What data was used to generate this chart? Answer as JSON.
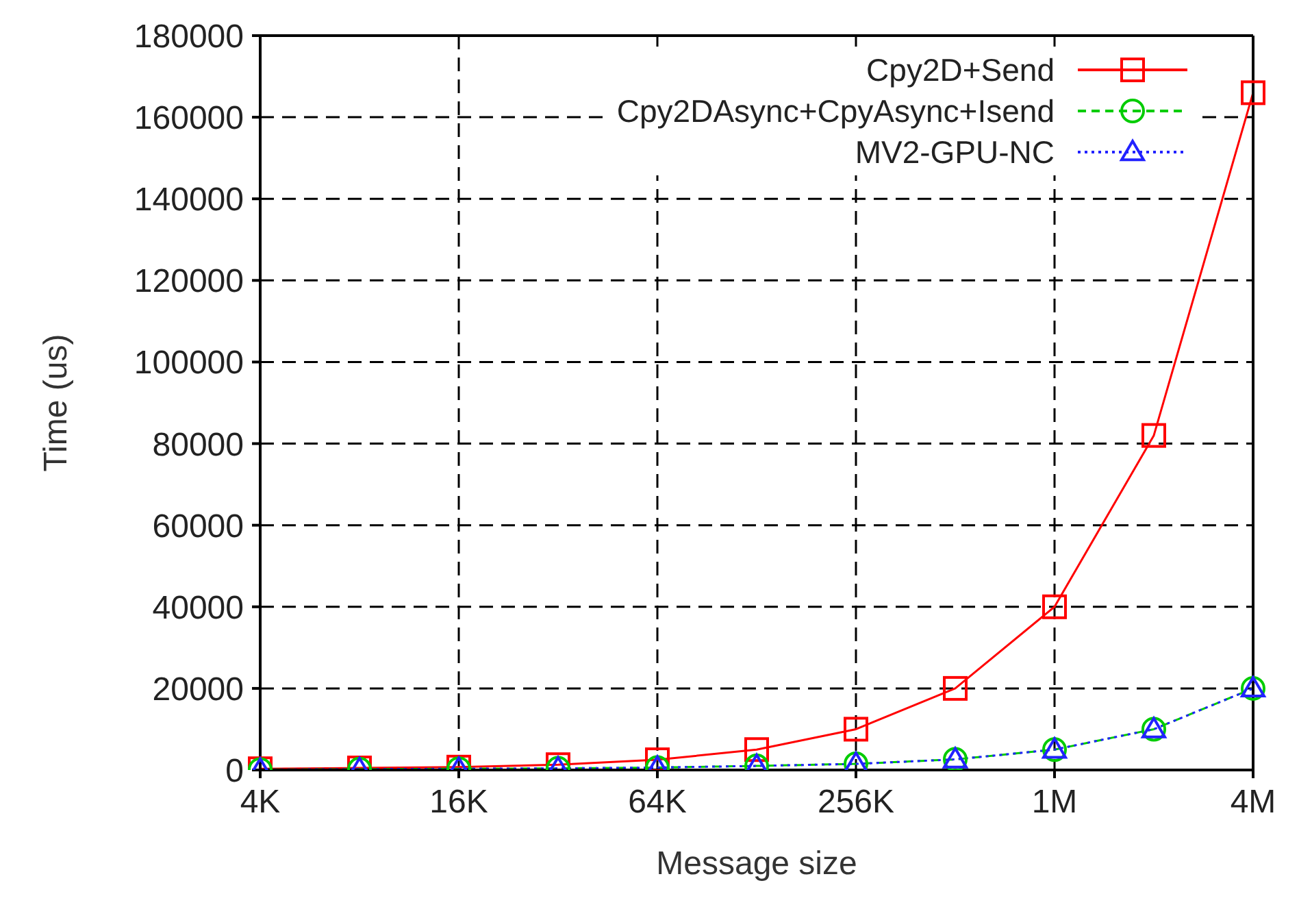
{
  "chart_data": {
    "type": "line",
    "xlabel": "Message size",
    "ylabel": "Time (us)",
    "categories": [
      "4K",
      null,
      "16K",
      null,
      "64K",
      null,
      "256K",
      null,
      "1M",
      null,
      "4M"
    ],
    "series": [
      {
        "name": "Cpy2D+Send",
        "color": "#ff0000",
        "marker": "square",
        "line_style": "solid",
        "values": [
          300,
          500,
          700,
          1300,
          2500,
          5000,
          10000,
          20000,
          40000,
          82000,
          166000
        ]
      },
      {
        "name": "Cpy2DAsync+CpyAsync+Isend",
        "color": "#00cc00",
        "marker": "circle",
        "line_style": "dashed",
        "values": [
          100,
          200,
          300,
          400,
          600,
          1000,
          1500,
          2600,
          5000,
          10000,
          20000
        ]
      },
      {
        "name": "MV2-GPU-NC",
        "color": "#2222ff",
        "marker": "triangle",
        "line_style": "dotted",
        "values": [
          100,
          200,
          300,
          400,
          600,
          1000,
          1500,
          2600,
          5000,
          10000,
          20000
        ]
      }
    ],
    "ylim": [
      0,
      180000
    ],
    "yticks": [
      0,
      20000,
      40000,
      60000,
      80000,
      100000,
      120000,
      140000,
      160000,
      180000
    ],
    "grid": true,
    "legend": "top right"
  }
}
